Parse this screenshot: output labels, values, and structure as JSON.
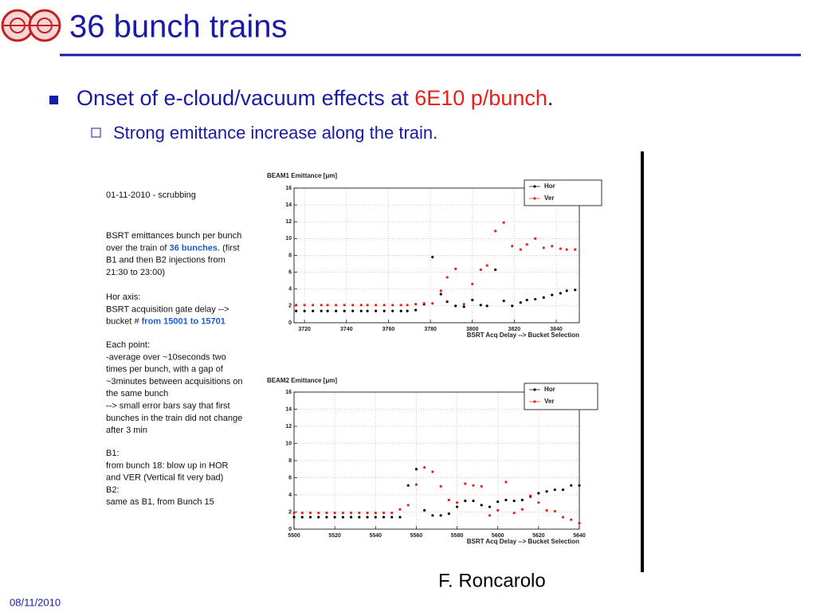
{
  "title": "36 bunch trains",
  "bullets": [
    {
      "text": "Onset of e-cloud/vacuum effects at ",
      "highlight": "6E10 p/bunch",
      "after": "."
    },
    {
      "text": "Strong emittance increase along the train."
    }
  ],
  "notes": [
    [
      [
        "01-11-2010 - scrubbing"
      ]
    ],
    [
      [
        "BSRT emittances bunch per bunch"
      ],
      [
        "over the train of  ",
        {
          "text": "36 bunches",
          "emphasis": true
        },
        ". (first"
      ],
      [
        "B1 and then B2 injections from"
      ],
      [
        "21:30 to 23:00)"
      ]
    ],
    [
      [
        "Hor axis:"
      ],
      [
        "BSRT acquisition gate delay -->"
      ],
      [
        "bucket # ",
        {
          "text": "from 15001 to 15701",
          "emphasis": true
        }
      ]
    ],
    [
      [
        "Each point:"
      ],
      [
        "-average over ~10seconds two"
      ],
      [
        "times per bunch, with a gap of"
      ],
      [
        "~3minutes between acquisitions on"
      ],
      [
        "the same bunch"
      ],
      [
        "--> small error bars say that first"
      ],
      [
        "bunches in the train did not change"
      ],
      [
        "after 3 min"
      ]
    ],
    [
      [
        "B1:"
      ],
      [
        "from bunch 18: blow up in HOR"
      ],
      [
        "and VER (Vertical fit very bad)"
      ],
      [
        "B2:"
      ],
      [
        "same as B1, from Bunch 15"
      ]
    ]
  ],
  "chart_data": [
    {
      "type": "scatter",
      "title": "BEAM1 Emittance [μm]",
      "x_label": "BSRT Acq Delay --> Bucket Selection",
      "x": [
        3716,
        3720,
        3724,
        3728,
        3731,
        3735,
        3739,
        3743,
        3747,
        3750,
        3754,
        3758,
        3762,
        3766,
        3769,
        3773,
        3777,
        3781,
        3785,
        3788,
        3792,
        3796,
        3800,
        3804,
        3807,
        3811,
        3815,
        3819,
        3823,
        3826,
        3830,
        3834,
        3838,
        3842,
        3845,
        3849
      ],
      "series": [
        {
          "name": "Hor",
          "color": "#000000",
          "values": [
            1.4,
            1.4,
            1.4,
            1.4,
            1.4,
            1.4,
            1.4,
            1.4,
            1.4,
            1.4,
            1.4,
            1.4,
            1.4,
            1.4,
            1.4,
            1.5,
            2.2,
            7.8,
            3.4,
            2.5,
            2.0,
            1.9,
            2.7,
            2.1,
            2.0,
            6.3,
            2.6,
            2.0,
            2.4,
            2.7,
            2.8,
            3.0,
            3.3,
            3.5,
            3.8,
            3.9
          ]
        },
        {
          "name": "Ver",
          "color": "#e8201a",
          "values": [
            2.1,
            2.1,
            2.1,
            2.1,
            2.1,
            2.1,
            2.1,
            2.1,
            2.1,
            2.1,
            2.1,
            2.1,
            2.1,
            2.1,
            2.1,
            2.2,
            2.3,
            2.3,
            3.8,
            5.4,
            6.4,
            2.2,
            4.6,
            6.3,
            6.8,
            10.9,
            11.9,
            9.1,
            8.7,
            9.3,
            10.0,
            8.9,
            9.1,
            8.8,
            8.7,
            8.7
          ]
        }
      ],
      "xlim": [
        3715,
        3851
      ],
      "ylim": [
        0,
        16
      ],
      "xticks": [
        3720,
        3740,
        3760,
        3780,
        3800,
        3820,
        3840
      ],
      "yticks": [
        0,
        2,
        4,
        6,
        8,
        10,
        12,
        14,
        16
      ],
      "grid": true
    },
    {
      "type": "scatter",
      "title": "BEAM2 Emittance [μm]",
      "x_label": "BSRT Acq Delay --> Bucket Selection",
      "x": [
        5500,
        5504,
        5508,
        5512,
        5516,
        5520,
        5524,
        5528,
        5532,
        5536,
        5540,
        5544,
        5548,
        5552,
        5556,
        5560,
        5564,
        5568,
        5572,
        5576,
        5580,
        5584,
        5588,
        5592,
        5596,
        5600,
        5604,
        5608,
        5612,
        5616,
        5620,
        5624,
        5628,
        5632,
        5636,
        5640
      ],
      "series": [
        {
          "name": "Hor",
          "color": "#000000",
          "values": [
            1.4,
            1.4,
            1.4,
            1.4,
            1.4,
            1.4,
            1.4,
            1.4,
            1.4,
            1.4,
            1.4,
            1.4,
            1.4,
            1.4,
            5.1,
            7.0,
            2.2,
            1.6,
            1.6,
            1.8,
            2.6,
            3.3,
            3.3,
            2.8,
            2.6,
            3.2,
            3.4,
            3.3,
            3.4,
            3.8,
            4.2,
            4.4,
            4.6,
            4.6,
            5.1,
            5.1
          ]
        },
        {
          "name": "Ver",
          "color": "#e8201a",
          "values": [
            1.9,
            1.9,
            1.9,
            1.9,
            1.9,
            1.9,
            1.9,
            1.9,
            1.9,
            1.9,
            1.9,
            1.9,
            1.9,
            2.3,
            2.8,
            5.2,
            7.2,
            6.7,
            5.0,
            3.4,
            3.1,
            5.3,
            5.1,
            5.0,
            1.6,
            2.2,
            5.5,
            1.9,
            2.3,
            3.9,
            3.1,
            2.2,
            2.1,
            1.4,
            1.1,
            0.7
          ]
        }
      ],
      "xlim": [
        5500,
        5640
      ],
      "ylim": [
        0,
        16
      ],
      "xticks": [
        5500,
        5520,
        5540,
        5560,
        5580,
        5600,
        5620,
        5640
      ],
      "yticks": [
        0,
        2,
        4,
        6,
        8,
        10,
        12,
        14,
        16
      ],
      "grid": true
    }
  ],
  "author": "F. Roncarolo",
  "date": "08/11/2010"
}
